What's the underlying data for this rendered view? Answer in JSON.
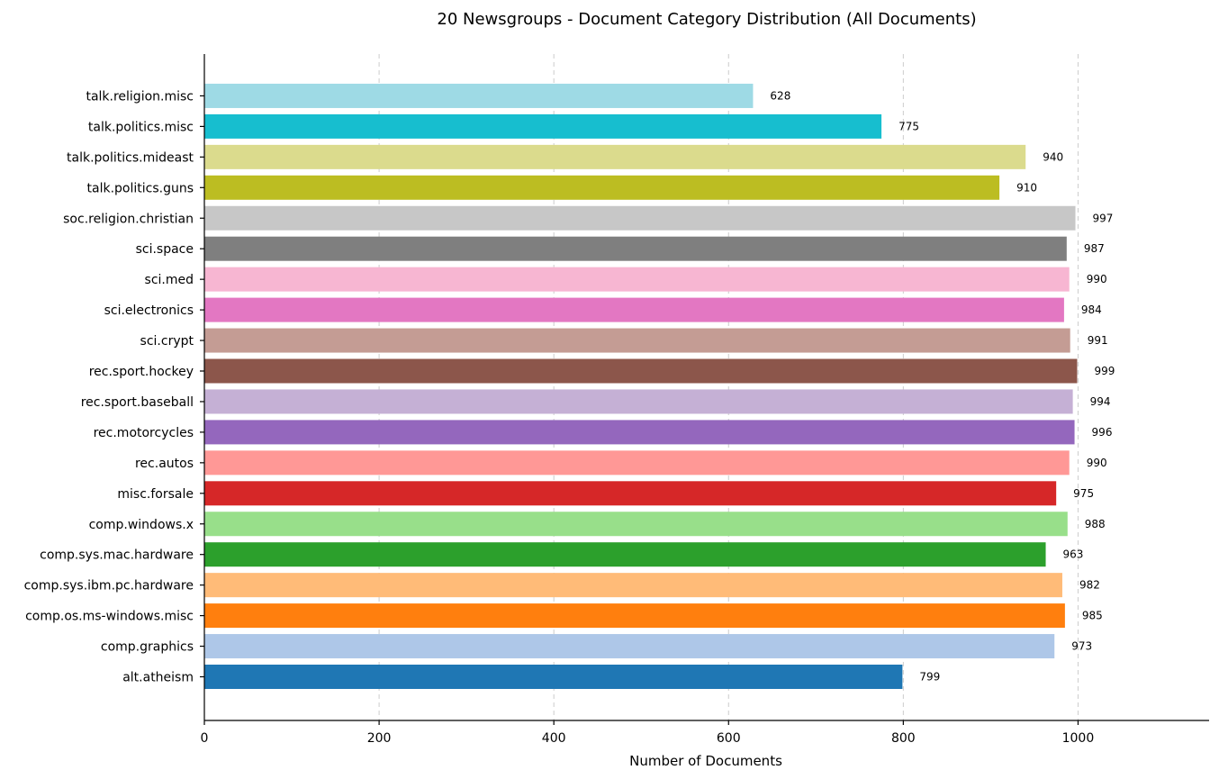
{
  "chart_data": {
    "type": "bar",
    "orientation": "horizontal",
    "title": "20 Newsgroups - Document Category Distribution (All Documents)",
    "xlabel": "Number of Documents",
    "ylabel": "",
    "xlim": [
      0,
      1150
    ],
    "xticks": [
      "0",
      "200",
      "400",
      "600",
      "800",
      "1000"
    ],
    "grid": "x-dashed",
    "categories": [
      "alt.atheism",
      "comp.graphics",
      "comp.os.ms-windows.misc",
      "comp.sys.ibm.pc.hardware",
      "comp.sys.mac.hardware",
      "comp.windows.x",
      "misc.forsale",
      "rec.autos",
      "rec.motorcycles",
      "rec.sport.baseball",
      "rec.sport.hockey",
      "sci.crypt",
      "sci.electronics",
      "sci.med",
      "sci.space",
      "soc.religion.christian",
      "talk.politics.guns",
      "talk.politics.mideast",
      "talk.politics.misc",
      "talk.religion.misc"
    ],
    "values": [
      799,
      973,
      985,
      982,
      963,
      988,
      975,
      990,
      996,
      994,
      999,
      991,
      984,
      990,
      987,
      997,
      910,
      940,
      775,
      628
    ],
    "value_labels": [
      "799",
      "973",
      "985",
      "982",
      "963",
      "988",
      "975",
      "990",
      "996",
      "994",
      "999",
      "991",
      "984",
      "990",
      "987",
      "997",
      "910",
      "940",
      "775",
      "628"
    ],
    "colors": [
      "#1f77b4",
      "#aec7e8",
      "#ff7f0e",
      "#ffbb78",
      "#2ca02c",
      "#98df8a",
      "#d62728",
      "#ff9896",
      "#9467bd",
      "#c5b0d5",
      "#8c564b",
      "#c49c94",
      "#e377c2",
      "#f7b6d2",
      "#7f7f7f",
      "#c7c7c7",
      "#bcbd22",
      "#dbdb8d",
      "#17becf",
      "#9edae5"
    ]
  }
}
